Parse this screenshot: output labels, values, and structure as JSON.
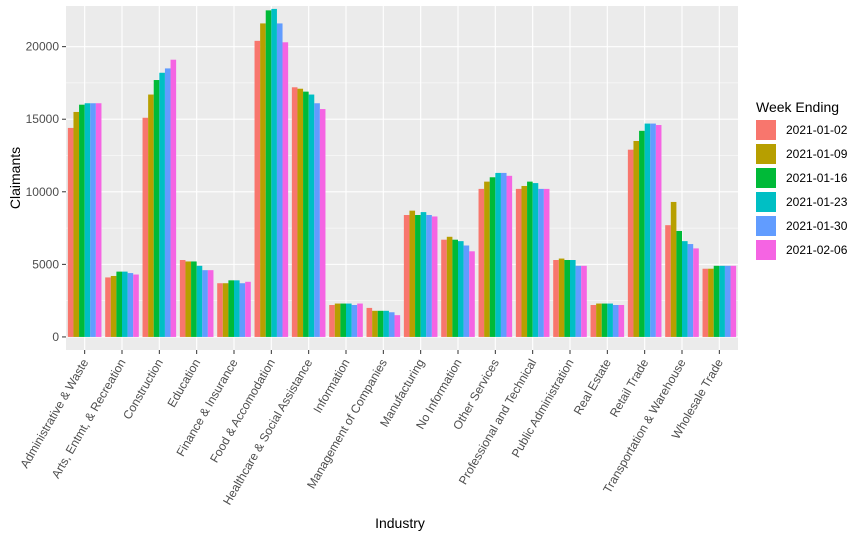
{
  "chart_data": {
    "type": "bar",
    "title": "",
    "xlabel": "Industry",
    "ylabel": "Claimants",
    "ylim": [
      -900,
      22800
    ],
    "yticks": [
      0,
      5000,
      10000,
      15000,
      20000
    ],
    "grid": true,
    "legend_position": "right",
    "legend_title": "Week Ending",
    "categories": [
      "Administrative & Waste",
      "Arts, Entmt, & Recreation",
      "Construction",
      "Education",
      "Finance & Insurance",
      "Food & Accomodation",
      "Healthcare & Social Assistance",
      "Information",
      "Management of Companies",
      "Manufacturing",
      "No Information",
      "Other Services",
      "Professional and Technical",
      "Public Administration",
      "Real Estate",
      "Retail Trade",
      "Transportation & Warehouse",
      "Wholesale Trade"
    ],
    "series": [
      {
        "name": "2021-01-02",
        "color": "#F8766D",
        "values": [
          14400,
          4100,
          15100,
          5300,
          3700,
          20400,
          17200,
          2200,
          2000,
          8400,
          6700,
          10200,
          10200,
          5300,
          2200,
          12900,
          7700,
          4700
        ]
      },
      {
        "name": "2021-01-09",
        "color": "#B79F00",
        "values": [
          15500,
          4200,
          16700,
          5200,
          3700,
          21600,
          17100,
          2300,
          1800,
          8700,
          6900,
          10700,
          10400,
          5400,
          2300,
          13500,
          9300,
          4700
        ]
      },
      {
        "name": "2021-01-16",
        "color": "#00BA38",
        "values": [
          16000,
          4500,
          17700,
          5200,
          3900,
          22500,
          16900,
          2300,
          1800,
          8400,
          6700,
          11000,
          10700,
          5300,
          2300,
          14200,
          7300,
          4900
        ]
      },
      {
        "name": "2021-01-23",
        "color": "#00BFC4",
        "values": [
          16100,
          4500,
          18200,
          4900,
          3900,
          22600,
          16700,
          2300,
          1800,
          8600,
          6600,
          11300,
          10600,
          5300,
          2300,
          14700,
          6600,
          4900
        ]
      },
      {
        "name": "2021-01-30",
        "color": "#619CFF",
        "values": [
          16100,
          4400,
          18500,
          4600,
          3700,
          21600,
          16100,
          2200,
          1700,
          8400,
          6300,
          11300,
          10200,
          4900,
          2200,
          14700,
          6400,
          4900
        ]
      },
      {
        "name": "2021-02-06",
        "color": "#F564E3",
        "values": [
          16100,
          4300,
          19100,
          4600,
          3800,
          20300,
          15700,
          2300,
          1500,
          8300,
          5900,
          11100,
          10200,
          4900,
          2200,
          14600,
          6100,
          4900
        ]
      }
    ]
  }
}
